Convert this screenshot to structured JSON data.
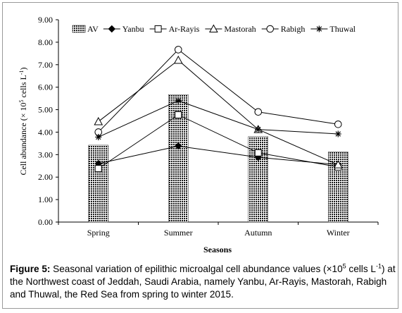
{
  "chart_data": {
    "type": "bar+line",
    "categories": [
      "Spring",
      "Summer",
      "Autumn",
      "Winter"
    ],
    "bars": {
      "name": "AV",
      "values": [
        3.42,
        5.67,
        3.8,
        3.12
      ]
    },
    "series": [
      {
        "name": "Yanbu",
        "marker": "diamond",
        "values": [
          2.6,
          3.38,
          2.88,
          2.55
        ]
      },
      {
        "name": "Ar-Rayis",
        "marker": "square",
        "values": [
          2.38,
          4.77,
          3.08,
          2.45
        ]
      },
      {
        "name": "Mastorah",
        "marker": "triangle",
        "values": [
          4.47,
          7.2,
          4.12,
          2.55
        ]
      },
      {
        "name": "Rabigh",
        "marker": "circle",
        "values": [
          4.0,
          7.67,
          4.9,
          4.35
        ]
      },
      {
        "name": "Thuwal",
        "marker": "star",
        "values": [
          3.78,
          5.4,
          4.12,
          3.92
        ]
      }
    ],
    "xlabel": "Seasons",
    "ylabel_html": "Cell abundance (× 10<tspan dy=\"-4\" font-size=\"8\">5</tspan><tspan dy=\"4\"> cells L</tspan><tspan dy=\"-4\" font-size=\"8\">-1</tspan><tspan dy=\"4\">)</tspan>",
    "ylim": [
      0,
      9
    ],
    "yticks": [
      "0.00",
      "1.00",
      "2.00",
      "3.00",
      "4.00",
      "5.00",
      "6.00",
      "7.00",
      "8.00",
      "9.00"
    ],
    "grid": false,
    "legend_position": "top"
  },
  "caption": {
    "label": "Figure 5:",
    "text_a": " Seasonal variation of epilithic microalgal cell abundance values (×10",
    "sup_a": "5",
    "text_b": " cells L",
    "sup_b": "-1",
    "text_c": ") at the Northwest coast of Jeddah, Saudi Arabia, namely Yanbu, Ar-Rayis, Mastorah, Rabigh and Thuwal, the Red Sea from spring to winter 2015."
  }
}
